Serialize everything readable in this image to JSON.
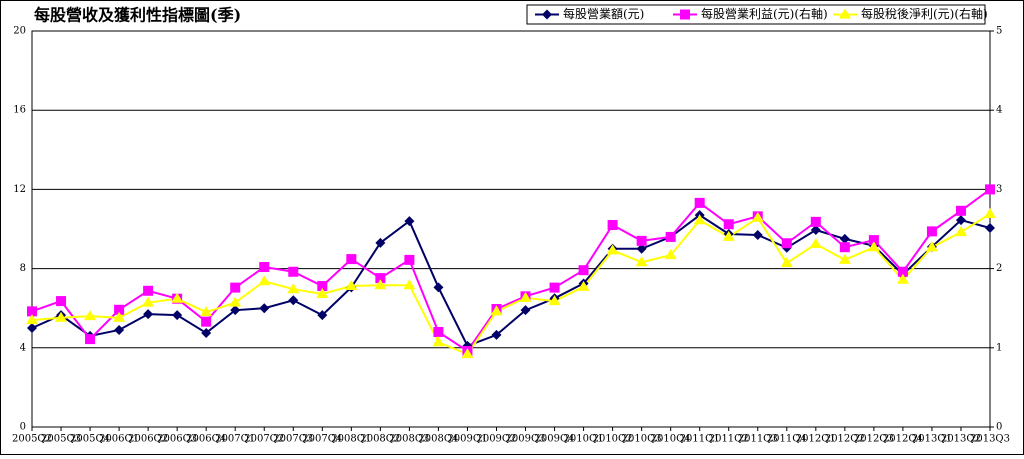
{
  "chart_data": {
    "type": "line",
    "title": "每股營收及獲利性指標圖(季)",
    "categories": [
      "2005Q2",
      "2005Q3",
      "2005Q4",
      "2006Q1",
      "2006Q2",
      "2006Q3",
      "2006Q4",
      "2007Q1",
      "2007Q2",
      "2007Q3",
      "2007Q4",
      "2008Q1",
      "2008Q2",
      "2008Q3",
      "2008Q4",
      "2009Q1",
      "2009Q2",
      "2009Q3",
      "2009Q4",
      "2010Q1",
      "2010Q2",
      "2010Q3",
      "2010Q4",
      "2011Q1",
      "2011Q2",
      "2011Q3",
      "2011Q4",
      "2012Q1",
      "2012Q2",
      "2012Q3",
      "2012Q4",
      "2013Q1",
      "2013Q2",
      "2013Q3"
    ],
    "series": [
      {
        "name": "每股營業額(元)",
        "color": "#000066",
        "marker": "diamond",
        "axis": "y",
        "values": [
          5.0,
          5.65,
          4.6,
          4.9,
          5.7,
          5.65,
          4.75,
          5.9,
          6.0,
          6.4,
          5.65,
          7.05,
          9.3,
          10.4,
          7.05,
          4.1,
          4.65,
          5.9,
          6.5,
          7.25,
          9.0,
          9.0,
          9.6,
          10.7,
          9.75,
          9.7,
          9.05,
          9.95,
          9.5,
          9.15,
          7.7,
          9.1,
          10.45,
          10.05
        ]
      },
      {
        "name": "每股營業利益(元)(右軸)",
        "color": "#ff00ff",
        "marker": "square",
        "axis": "y2",
        "values": [
          1.46,
          1.59,
          1.11,
          1.48,
          1.72,
          1.62,
          1.33,
          1.76,
          2.02,
          1.96,
          1.78,
          2.12,
          1.88,
          2.11,
          1.2,
          0.96,
          1.49,
          1.65,
          1.76,
          1.98,
          2.55,
          2.35,
          2.4,
          2.83,
          2.56,
          2.66,
          2.32,
          2.59,
          2.27,
          2.36,
          1.96,
          2.47,
          2.73,
          3.0
        ]
      },
      {
        "name": "每股稅後淨利(元)(右軸)",
        "color": "#ffff00",
        "marker": "triangle",
        "axis": "y2",
        "values": [
          1.35,
          1.38,
          1.4,
          1.38,
          1.57,
          1.62,
          1.45,
          1.57,
          1.84,
          1.74,
          1.68,
          1.78,
          1.79,
          1.79,
          1.07,
          0.92,
          1.46,
          1.63,
          1.59,
          1.77,
          2.23,
          2.08,
          2.17,
          2.61,
          2.4,
          2.64,
          2.07,
          2.31,
          2.11,
          2.27,
          1.86,
          2.27,
          2.46,
          2.69
        ]
      }
    ],
    "ylim": [
      0,
      20
    ],
    "yticks": [
      0,
      4,
      8,
      12,
      16,
      20
    ],
    "y2lim": [
      0,
      5
    ],
    "y2ticks": [
      0,
      1,
      2,
      3,
      4,
      5
    ],
    "grid": true,
    "legend": "top-right"
  }
}
